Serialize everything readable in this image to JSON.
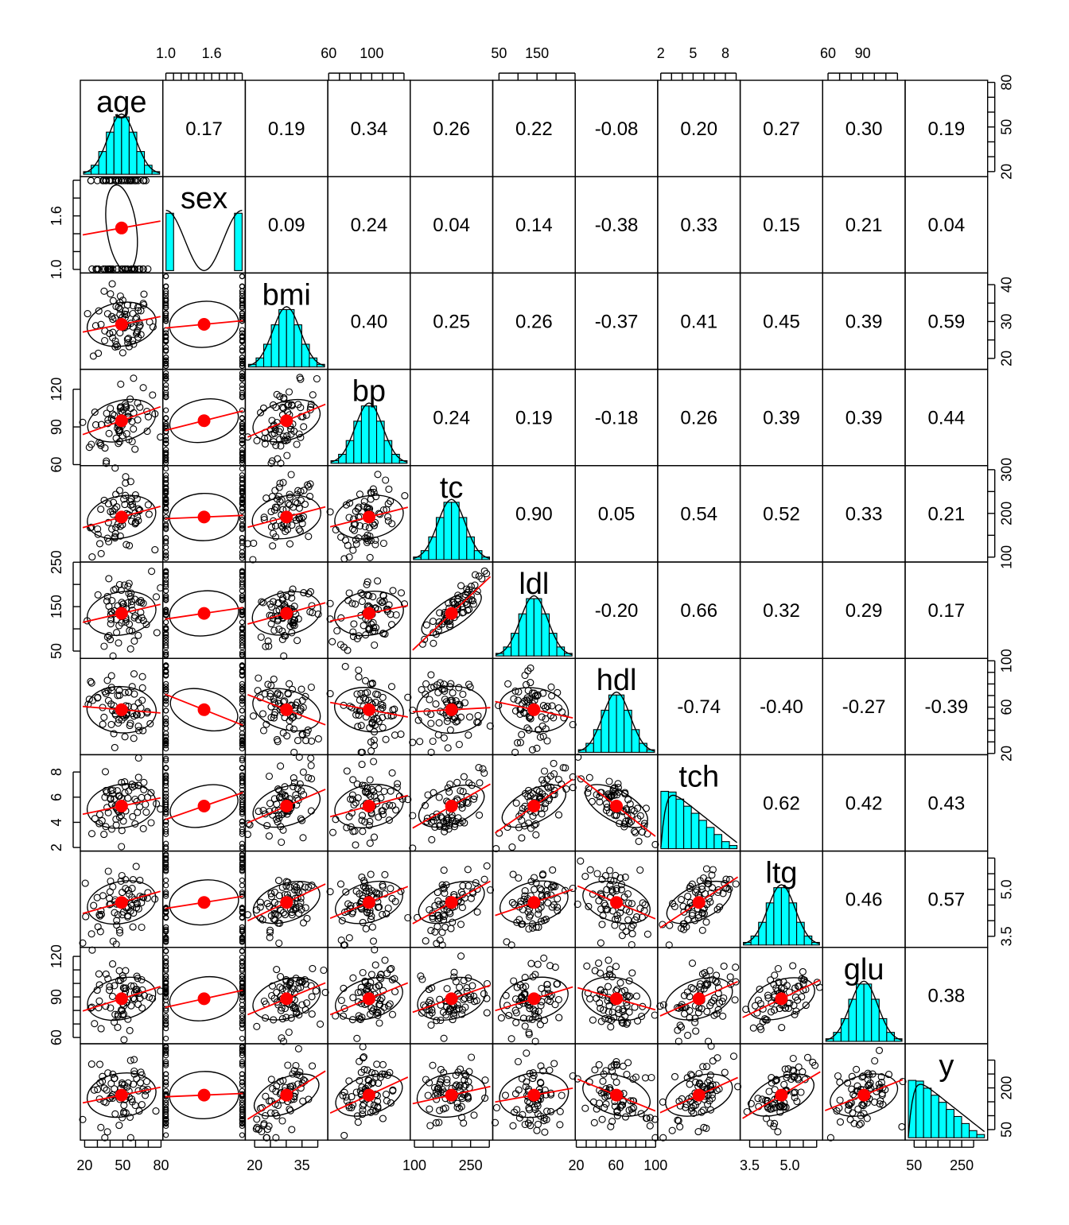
{
  "chart_data": {
    "type": "scatter_matrix",
    "variables": [
      "age",
      "sex",
      "bmi",
      "bp",
      "tc",
      "ldl",
      "hdl",
      "tch",
      "ltg",
      "glu",
      "y"
    ],
    "correlations": [
      [
        null,
        "0.17",
        "0.19",
        "0.34",
        "0.26",
        "0.22",
        "-0.08",
        "0.20",
        "0.27",
        "0.30",
        "0.19"
      ],
      [
        null,
        null,
        "0.09",
        "0.24",
        "0.04",
        "0.14",
        "-0.38",
        "0.33",
        "0.15",
        "0.21",
        "0.04"
      ],
      [
        null,
        null,
        null,
        "0.40",
        "0.25",
        "0.26",
        "-0.37",
        "0.41",
        "0.45",
        "0.39",
        "0.59"
      ],
      [
        null,
        null,
        null,
        null,
        "0.24",
        "0.19",
        "-0.18",
        "0.26",
        "0.39",
        "0.39",
        "0.44"
      ],
      [
        null,
        null,
        null,
        null,
        null,
        "0.90",
        "0.05",
        "0.54",
        "0.52",
        "0.33",
        "0.21"
      ],
      [
        null,
        null,
        null,
        null,
        null,
        null,
        "-0.20",
        "0.66",
        "0.32",
        "0.29",
        "0.17"
      ],
      [
        null,
        null,
        null,
        null,
        null,
        null,
        null,
        "-0.74",
        "-0.40",
        "-0.27",
        "-0.39"
      ],
      [
        null,
        null,
        null,
        null,
        null,
        null,
        null,
        null,
        "0.62",
        "0.42",
        "0.43"
      ],
      [
        null,
        null,
        null,
        null,
        null,
        null,
        null,
        null,
        null,
        "0.46",
        "0.57"
      ],
      [
        null,
        null,
        null,
        null,
        null,
        null,
        null,
        null,
        null,
        null,
        "0.38"
      ],
      [
        null,
        null,
        null,
        null,
        null,
        null,
        null,
        null,
        null,
        null,
        null
      ]
    ],
    "ranges": {
      "age": [
        19,
        79
      ],
      "sex": [
        1,
        2
      ],
      "bmi": [
        18,
        42.2
      ],
      "bp": [
        62,
        133
      ],
      "tc": [
        97,
        301
      ],
      "ldl": [
        41.6,
        242.4
      ],
      "hdl": [
        22,
        99
      ],
      "tch": [
        2,
        9.09
      ],
      "ltg": [
        3.26,
        6.11
      ],
      "glu": [
        58,
        124
      ],
      "y": [
        25,
        346
      ]
    },
    "axes": {
      "top": [
        {
          "var": "sex",
          "ticks": [
            1.0,
            1.1,
            1.2,
            1.3,
            1.4,
            1.5,
            1.6,
            1.7,
            1.8,
            1.9,
            2.0
          ],
          "labels": [
            "1.0",
            "1.6"
          ],
          "label_values": [
            1.0,
            1.6
          ]
        },
        {
          "var": "bp",
          "ticks": [
            60,
            70,
            80,
            90,
            100,
            110,
            120,
            130
          ],
          "labels": [
            "60",
            "100"
          ],
          "label_values": [
            60,
            100
          ]
        },
        {
          "var": "ldl",
          "ticks": [
            50,
            100,
            150,
            200,
            250
          ],
          "labels": [
            "50",
            "150"
          ],
          "label_values": [
            50,
            150
          ]
        },
        {
          "var": "tch",
          "ticks": [
            2,
            3,
            4,
            5,
            6,
            7,
            8,
            9
          ],
          "labels": [
            "2",
            "5",
            "8"
          ],
          "label_values": [
            2,
            5,
            8
          ]
        },
        {
          "var": "glu",
          "ticks": [
            60,
            70,
            80,
            90,
            100,
            110,
            120
          ],
          "labels": [
            "60",
            "90"
          ],
          "label_values": [
            60,
            90
          ]
        }
      ],
      "bottom": [
        {
          "var": "age",
          "ticks": [
            20,
            30,
            40,
            50,
            60,
            70,
            80
          ],
          "labels": [
            "20",
            "50",
            "80"
          ],
          "label_values": [
            20,
            50,
            80
          ]
        },
        {
          "var": "bmi",
          "ticks": [
            20,
            25,
            30,
            35,
            40
          ],
          "labels": [
            "20",
            "35"
          ],
          "label_values": [
            20,
            35
          ]
        },
        {
          "var": "tc",
          "ticks": [
            100,
            150,
            200,
            250,
            300
          ],
          "labels": [
            "100",
            "250"
          ],
          "label_values": [
            100,
            250
          ]
        },
        {
          "var": "hdl",
          "ticks": [
            20,
            30,
            40,
            50,
            60,
            70,
            80,
            90,
            100
          ],
          "labels": [
            "20",
            "60",
            "100"
          ],
          "label_values": [
            20,
            60,
            100
          ]
        },
        {
          "var": "ltg",
          "ticks": [
            3.5,
            4.0,
            4.5,
            5.0,
            5.5,
            6.0
          ],
          "labels": [
            "3.5",
            "5.0"
          ],
          "label_values": [
            3.5,
            5.0
          ]
        },
        {
          "var": "y",
          "ticks": [
            50,
            100,
            150,
            200,
            250,
            300
          ],
          "labels": [
            "50",
            "250"
          ],
          "label_values": [
            50,
            250
          ]
        }
      ],
      "left": [
        {
          "var": "sex",
          "ticks": [
            1.0,
            1.2,
            1.4,
            1.6,
            1.8,
            2.0
          ],
          "labels": [
            "1.0",
            "1.6"
          ],
          "label_values": [
            1.0,
            1.6
          ]
        },
        {
          "var": "bp",
          "ticks": [
            60,
            90,
            120
          ],
          "labels": [
            "60",
            "90",
            "120"
          ],
          "label_values": [
            60,
            90,
            120
          ]
        },
        {
          "var": "ldl",
          "ticks": [
            50,
            100,
            150,
            200,
            250
          ],
          "labels": [
            "50",
            "150",
            "250"
          ],
          "label_values": [
            50,
            150,
            250
          ]
        },
        {
          "var": "tch",
          "ticks": [
            2,
            4,
            6,
            8
          ],
          "labels": [
            "2",
            "4",
            "6",
            "8"
          ],
          "label_values": [
            2,
            4,
            6,
            8
          ]
        },
        {
          "var": "glu",
          "ticks": [
            60,
            70,
            80,
            90,
            100,
            110,
            120
          ],
          "labels": [
            "60",
            "90",
            "120"
          ],
          "label_values": [
            60,
            90,
            120
          ]
        }
      ],
      "right": [
        {
          "var": "age",
          "ticks": [
            20,
            30,
            40,
            50,
            60,
            70,
            80
          ],
          "labels": [
            "20",
            "50",
            "80"
          ],
          "label_values": [
            20,
            50,
            80
          ]
        },
        {
          "var": "bmi",
          "ticks": [
            20,
            25,
            30,
            35,
            40
          ],
          "labels": [
            "20",
            "30",
            "40"
          ],
          "label_values": [
            20,
            30,
            40
          ]
        },
        {
          "var": "tc",
          "ticks": [
            100,
            150,
            200,
            250,
            300
          ],
          "labels": [
            "100",
            "200",
            "300"
          ],
          "label_values": [
            100,
            200,
            300
          ]
        },
        {
          "var": "hdl",
          "ticks": [
            20,
            30,
            40,
            50,
            60,
            70,
            80,
            90,
            100
          ],
          "labels": [
            "20",
            "60",
            "100"
          ],
          "label_values": [
            20,
            60,
            100
          ]
        },
        {
          "var": "ltg",
          "ticks": [
            3.5,
            4.0,
            4.5,
            5.0,
            5.5,
            6.0
          ],
          "labels": [
            "3.5",
            "5.0"
          ],
          "label_values": [
            3.5,
            5.0
          ]
        },
        {
          "var": "y",
          "ticks": [
            50,
            100,
            150,
            200,
            250,
            300
          ],
          "labels": [
            "50",
            "200"
          ],
          "label_values": [
            50,
            200
          ]
        }
      ]
    },
    "colors": {
      "histogram_fill": "#00ffff",
      "fit_line": "#ff0000",
      "mean_point": "#ff0000",
      "points": "#000000",
      "density": "#000000",
      "ellipse": "#000000"
    },
    "lower_panel": "scatter with loess fit, mean point and correlation ellipse",
    "upper_panel": "Pearson correlation",
    "diagonal_panel": "histogram with density curve"
  }
}
